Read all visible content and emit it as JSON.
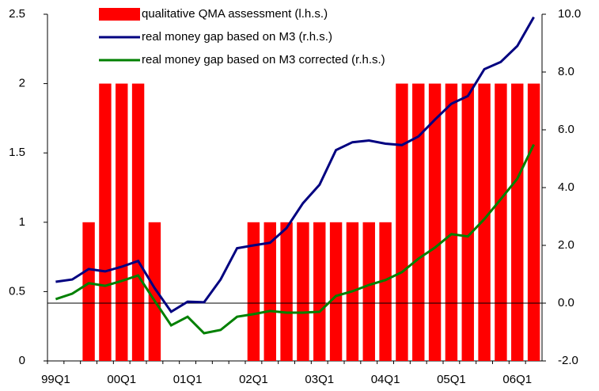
{
  "chart_data": {
    "type": "bar_line",
    "categories": [
      "99Q1",
      null,
      null,
      null,
      "00Q1",
      null,
      null,
      null,
      "01Q1",
      null,
      null,
      null,
      "02Q1",
      null,
      null,
      null,
      "03Q1",
      null,
      null,
      null,
      "04Q1",
      null,
      null,
      null,
      "05Q1",
      null,
      null,
      null,
      "06Q1",
      null
    ],
    "series": [
      {
        "name": "qualitative QMA assessment (l.h.s.)",
        "type": "bar",
        "color": "#ff0000",
        "axis": "y",
        "values": [
          0,
          0,
          1,
          2,
          2,
          2,
          1,
          0,
          0,
          0,
          0,
          0,
          1,
          1,
          1,
          1,
          1,
          1,
          1,
          1,
          1,
          2,
          2,
          2,
          2,
          2,
          2,
          2,
          2,
          2
        ]
      },
      {
        "name": "real money gap based on M3 (r.h.s.)",
        "type": "line",
        "color": "#000080",
        "axis": "y2",
        "values": [
          0.74,
          0.82,
          1.18,
          1.1,
          1.26,
          1.46,
          0.52,
          -0.3,
          0.05,
          0.03,
          0.82,
          1.9,
          2.0,
          2.09,
          2.6,
          3.46,
          4.1,
          5.3,
          5.57,
          5.63,
          5.52,
          5.47,
          5.77,
          6.35,
          6.9,
          7.17,
          8.1,
          8.35,
          8.9,
          9.9
        ]
      },
      {
        "name": "real money gap based on M3 corrected (r.h.s.)",
        "type": "line",
        "color": "#008000",
        "axis": "y2",
        "values": [
          0.14,
          0.33,
          0.69,
          0.6,
          0.77,
          0.96,
          0.08,
          -0.77,
          -0.47,
          -1.04,
          -0.93,
          -0.47,
          -0.38,
          -0.27,
          -0.33,
          -0.33,
          -0.3,
          0.25,
          0.41,
          0.63,
          0.8,
          1.07,
          1.54,
          1.92,
          2.39,
          2.31,
          2.91,
          3.6,
          4.31,
          5.49
        ]
      }
    ],
    "ylim": [
      0,
      2.5
    ],
    "yticks": [
      0,
      0.5,
      1,
      1.5,
      2,
      2.5
    ],
    "y2lim": [
      -2,
      10
    ],
    "y2ticks": [
      {
        "value": -2,
        "label": "-2.0"
      },
      {
        "value": 0,
        "label": "0.0"
      },
      {
        "value": 2,
        "label": "2.0"
      },
      {
        "value": 4,
        "label": "4.0"
      },
      {
        "value": 6,
        "label": "6.0"
      },
      {
        "value": 8,
        "label": "8.0"
      },
      {
        "value": 10,
        "label": "10.0"
      }
    ],
    "legend": "top",
    "grid": false
  }
}
